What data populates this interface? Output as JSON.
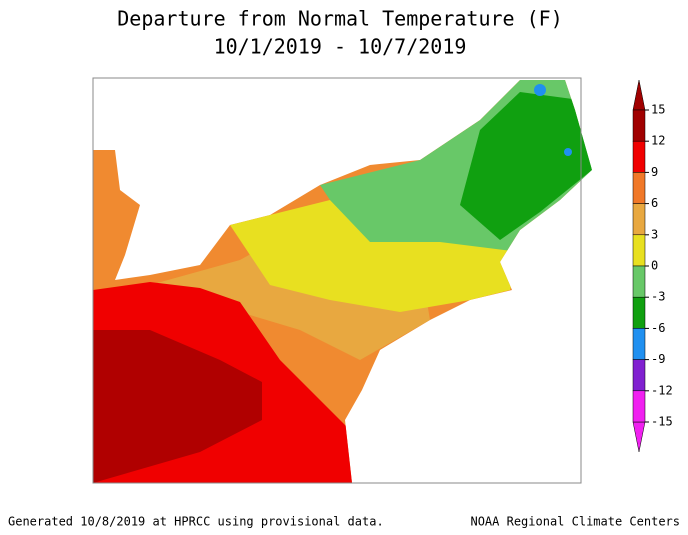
{
  "title": "Departure from Normal Temperature (F)",
  "subtitle": "10/1/2019 - 10/7/2019",
  "colorbar": {
    "lim": [
      -15,
      15
    ],
    "ticks": [
      15,
      12,
      9,
      6,
      3,
      0,
      -3,
      -6,
      -9,
      -12,
      -15
    ],
    "colors": [
      "#a00000",
      "#f00000",
      "#f07828",
      "#e8a840",
      "#e8e020",
      "#68c868",
      "#10a010",
      "#2090f0",
      "#8020d0",
      "#f020f0"
    ]
  },
  "footer": {
    "left": "Generated 10/8/2019 at HPRCC using provisional data.",
    "right": "NOAA Regional Climate Centers"
  }
}
